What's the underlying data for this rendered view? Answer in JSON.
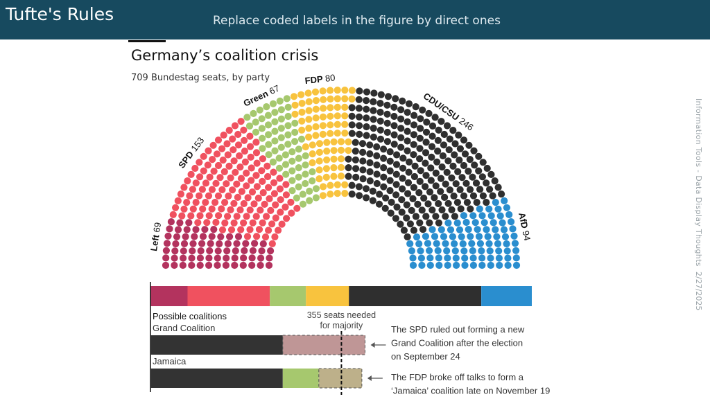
{
  "slide": {
    "title": "Tufte's Rules",
    "subtitle": "Replace coded labels in the figure by direct ones",
    "side_text": "Information Tools - Data Display Thoughts",
    "date": "2/27/2025"
  },
  "chart_data": {
    "type": "bar",
    "title": "Germany’s coalition crisis",
    "subtitle": "709 Bundestag seats, by party",
    "total_seats": 709,
    "majority_line": 355,
    "majority_label": [
      "355 seats needed",
      "for majority"
    ],
    "parties": [
      {
        "name": "Left",
        "seats": 69,
        "color": "#b3335e",
        "label_bold": true
      },
      {
        "name": "SPD",
        "seats": 153,
        "color": "#f0515f",
        "label_bold": true
      },
      {
        "name": "Green",
        "seats": 67,
        "color": "#a6c86e",
        "label_bold": true
      },
      {
        "name": "FDP",
        "seats": 80,
        "color": "#f8c33e",
        "label_bold": true
      },
      {
        "name": "CDU/CSU",
        "seats": 246,
        "color": "#2f2f2f",
        "label_bold": true
      },
      {
        "name": "AfD",
        "seats": 94,
        "color": "#2a8ecf",
        "label_bold": true
      }
    ],
    "coalitions_heading": "Possible coalitions",
    "coalitions": [
      {
        "name": "Grand Coalition",
        "segments": [
          {
            "party": "CDU/CSU",
            "seats": 246,
            "color": "#333333",
            "dashed": false
          },
          {
            "party": "SPD",
            "seats": 153,
            "color": "#bf9696",
            "dashed": true
          }
        ],
        "note": [
          "The SPD ruled out forming a new",
          "Grand Coalition after the election",
          "on September 24"
        ]
      },
      {
        "name": "Jamaica",
        "segments": [
          {
            "party": "CDU/CSU",
            "seats": 246,
            "color": "#333333",
            "dashed": false
          },
          {
            "party": "Green",
            "seats": 67,
            "color": "#a6c86e",
            "dashed": false
          },
          {
            "party": "FDP",
            "seats": 80,
            "color": "#bdb08a",
            "dashed": true
          }
        ],
        "note": [
          "The FDP broke off talks to form a",
          "‘Jamaica’ coalition late on November 19"
        ]
      }
    ]
  }
}
